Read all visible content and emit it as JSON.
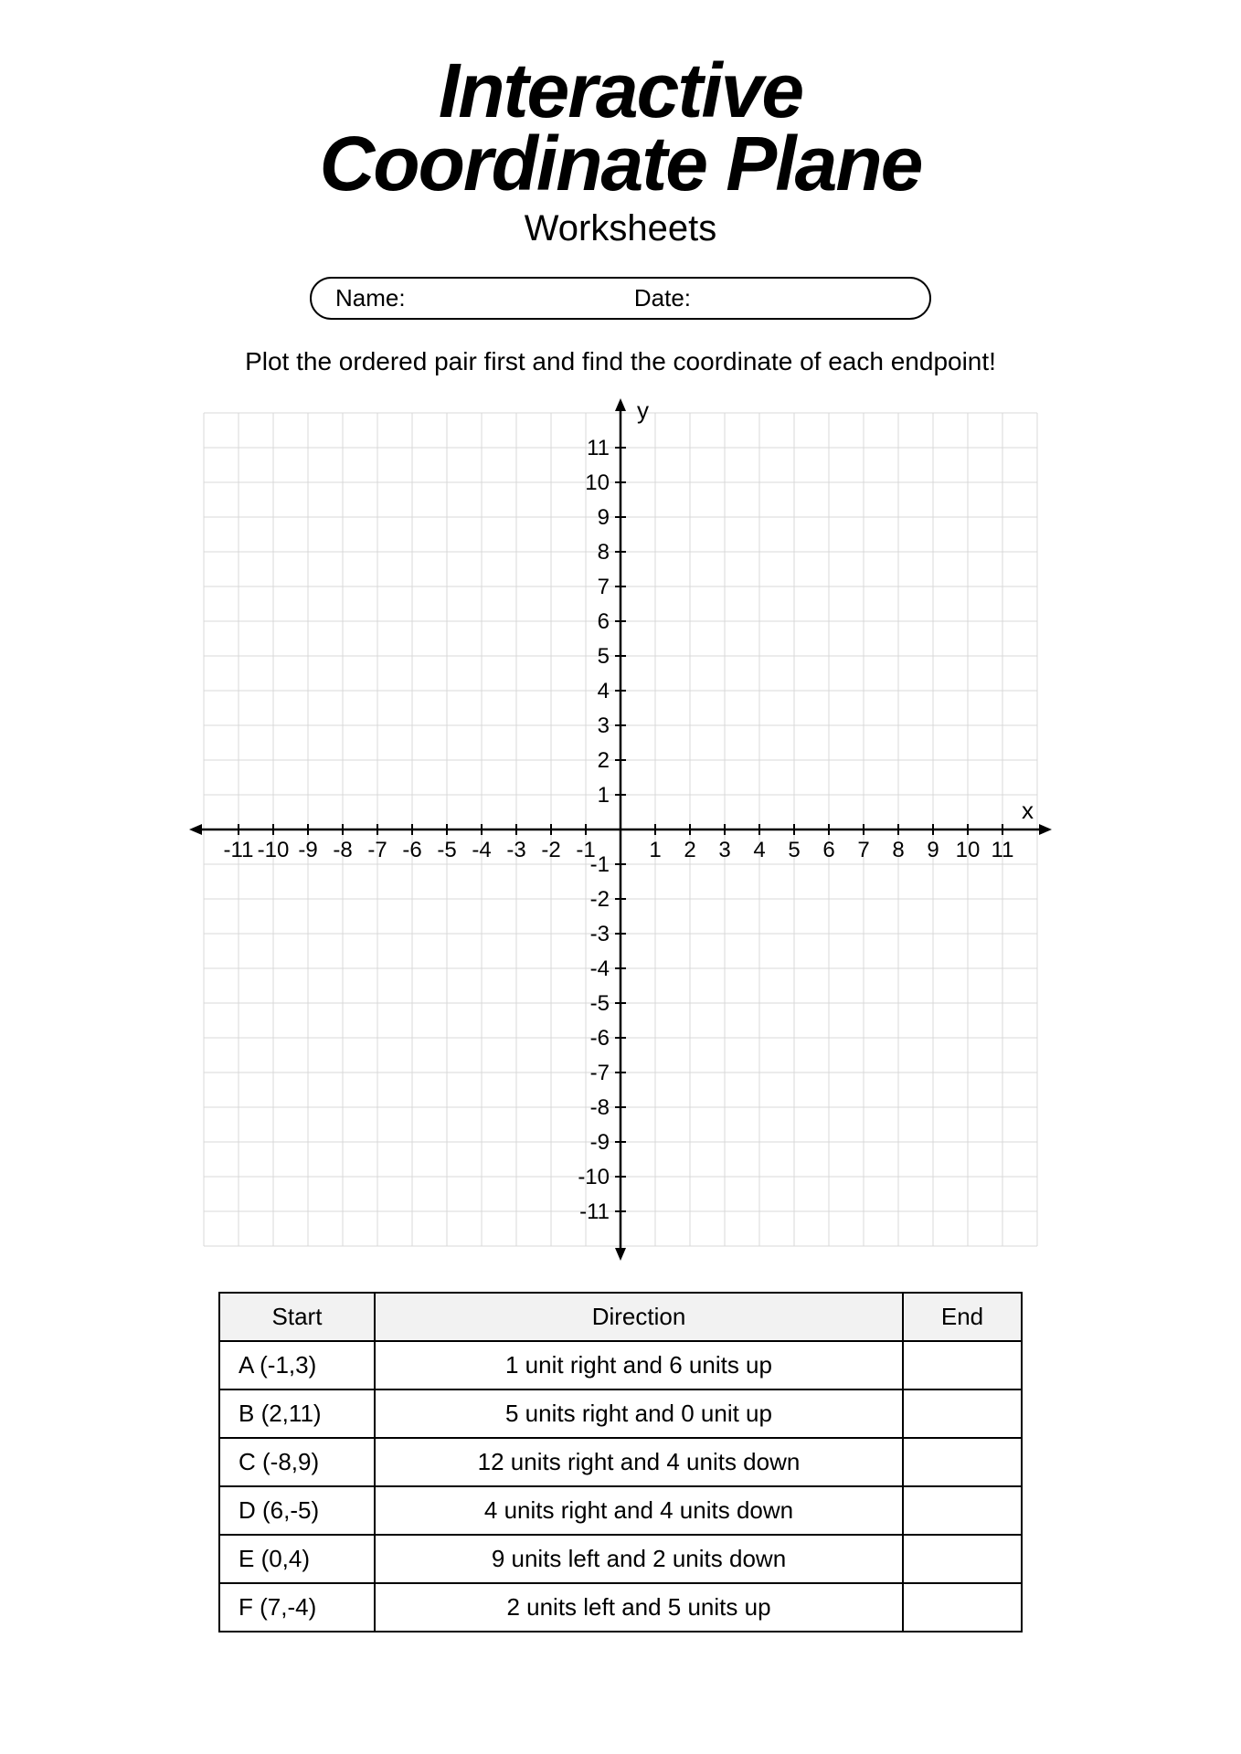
{
  "title_line1": "Interactive",
  "title_line2": "Coordinate Plane",
  "subtitle": "Worksheets",
  "name_label": "Name:",
  "date_label": "Date:",
  "instruction": "Plot the ordered pair first and find the coordinate of each endpoint!",
  "plane": {
    "x_label": "x",
    "y_label": "y",
    "x_ticks": [
      -11,
      -10,
      -9,
      -8,
      -7,
      -6,
      -5,
      -4,
      -3,
      -2,
      -1,
      1,
      2,
      3,
      4,
      5,
      6,
      7,
      8,
      9,
      10,
      11
    ],
    "y_ticks": [
      11,
      10,
      9,
      8,
      7,
      6,
      5,
      4,
      3,
      2,
      1,
      -1,
      -2,
      -3,
      -4,
      -5,
      -6,
      -7,
      -8,
      -9,
      -10,
      -11
    ],
    "range": 12,
    "cell": 38,
    "grid_color": "#d9d9d9",
    "axis_color": "#000000",
    "bg_color": "#ffffff"
  },
  "table": {
    "headers": {
      "start": "Start",
      "direction": "Direction",
      "end": "End"
    },
    "rows": [
      {
        "start": "A (-1,3)",
        "direction": "1 unit right and 6 units up",
        "end": ""
      },
      {
        "start": "B (2,11)",
        "direction": "5 units right and 0 unit up",
        "end": ""
      },
      {
        "start": "C (-8,9)",
        "direction": "12 units right and 4 units down",
        "end": ""
      },
      {
        "start": "D (6,-5)",
        "direction": "4 units right and 4 units down",
        "end": ""
      },
      {
        "start": "E (0,4)",
        "direction": "9 units left and 2 units down",
        "end": ""
      },
      {
        "start": "F (7,-4)",
        "direction": "2 units left and 5 units up",
        "end": ""
      }
    ]
  }
}
